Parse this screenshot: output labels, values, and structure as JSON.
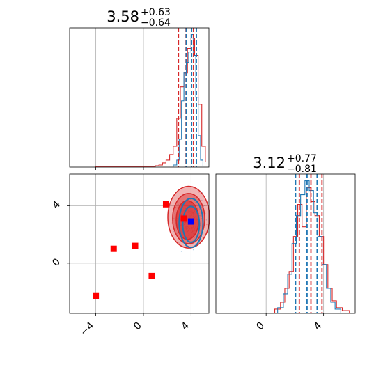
{
  "chart_data": {
    "type": "corner",
    "colors": {
      "red": "#d62728",
      "blue": "#1f77b4",
      "marker_red": "#ff0000",
      "marker_blue": "#0000ff",
      "grid": "#b0b0b0"
    },
    "grid": true,
    "panels": [
      {
        "id": "param1-marginal",
        "title_main": "3.58",
        "title_upper": "+0.63",
        "title_lower": "−0.64",
        "xlim": [
          -6.2,
          5.5
        ],
        "xticks": [
          -4,
          0,
          4
        ],
        "series": [
          {
            "name": "",
            "color": "#d62728",
            "bins": [
              -4,
              1.0,
              1.3,
              1.6,
              1.9,
              2.2,
              2.5,
              2.8,
              3.1,
              3.4,
              3.7,
              4.0,
              4.3,
              4.6,
              4.9,
              5.2
            ],
            "counts": [
              1,
              2,
              3,
              6,
              10,
              18,
              30,
              70,
              115,
              135,
              170,
              185,
              160,
              90,
              30,
              8
            ],
            "quantile_lines": [
              2.94,
              3.58,
              4.21
            ]
          },
          {
            "name": "",
            "color": "#1f77b4",
            "bins": [
              2.5,
              2.8,
              3.0,
              3.2,
              3.4,
              3.6,
              3.8,
              4.0,
              4.2,
              4.4,
              4.6,
              4.8,
              5.0
            ],
            "counts": [
              3,
              10,
              40,
              95,
              135,
              150,
              165,
              190,
              160,
              100,
              45,
              10,
              2
            ],
            "quantile_lines": [
              3.6,
              4.05,
              4.45
            ]
          }
        ]
      },
      {
        "id": "param2-marginal",
        "title_main": "3.12",
        "title_upper": "+0.77",
        "title_lower": "−0.81",
        "xlim": [
          -3.5,
          6.2
        ],
        "xticks": [
          0,
          4
        ],
        "series": [
          {
            "name": "",
            "color": "#d62728",
            "bins": [
              0.6,
              1.0,
              1.3,
              1.6,
              1.9,
              2.2,
              2.5,
              2.8,
              3.1,
              3.4,
              3.7,
              4.0,
              4.3,
              4.6,
              4.9,
              5.3,
              5.8
            ],
            "counts": [
              3,
              8,
              18,
              30,
              55,
              78,
              62,
              90,
              80,
              70,
              55,
              35,
              18,
              9,
              4,
              2
            ],
            "quantile_lines": [
              2.31,
              3.12,
              3.89
            ]
          },
          {
            "name": "",
            "color": "#1f77b4",
            "bins": [
              0.8,
              1.2,
              1.5,
              1.8,
              2.1,
              2.4,
              2.7,
              3.0,
              3.3,
              3.6,
              3.9,
              4.2,
              4.5,
              4.8,
              5.2
            ],
            "counts": [
              4,
              14,
              28,
              50,
              70,
              85,
              95,
              88,
              72,
              55,
              35,
              18,
              8,
              3
            ],
            "quantile_lines": [
              2.05,
              2.85,
              3.55
            ]
          }
        ]
      },
      {
        "id": "joint",
        "xlim": [
          -6.2,
          5.5
        ],
        "ylim": [
          -3.5,
          6.2
        ],
        "xticks": [
          -4,
          0,
          4
        ],
        "yticks": [
          0,
          4
        ],
        "contours": [
          {
            "color": "#d62728",
            "cx": 3.8,
            "cy": 3.2,
            "rx": 1.75,
            "ry": 2.15,
            "fill_opacity": 0.35
          },
          {
            "color": "#d62728",
            "cx": 3.8,
            "cy": 3.1,
            "rx": 1.35,
            "ry": 1.75,
            "fill_opacity": 0.45
          },
          {
            "color": "#d62728",
            "cx": 3.7,
            "cy": 3.0,
            "rx": 0.95,
            "ry": 1.35,
            "fill_opacity": 0.6
          },
          {
            "color": "#1f77b4",
            "cx": 4.0,
            "cy": 2.8,
            "rx": 1.0,
            "ry": 1.7,
            "fill_opacity": 0.0
          },
          {
            "color": "#1f77b4",
            "cx": 4.0,
            "cy": 2.7,
            "rx": 0.7,
            "ry": 1.25,
            "fill_opacity": 0.0
          }
        ],
        "red_markers": [
          [
            -4.0,
            -2.3
          ],
          [
            -2.5,
            1.0
          ],
          [
            -0.7,
            1.2
          ],
          [
            0.7,
            -0.9
          ],
          [
            1.9,
            4.1
          ],
          [
            3.4,
            3.1
          ]
        ],
        "blue_markers": [
          [
            4.0,
            2.9
          ]
        ]
      }
    ]
  }
}
